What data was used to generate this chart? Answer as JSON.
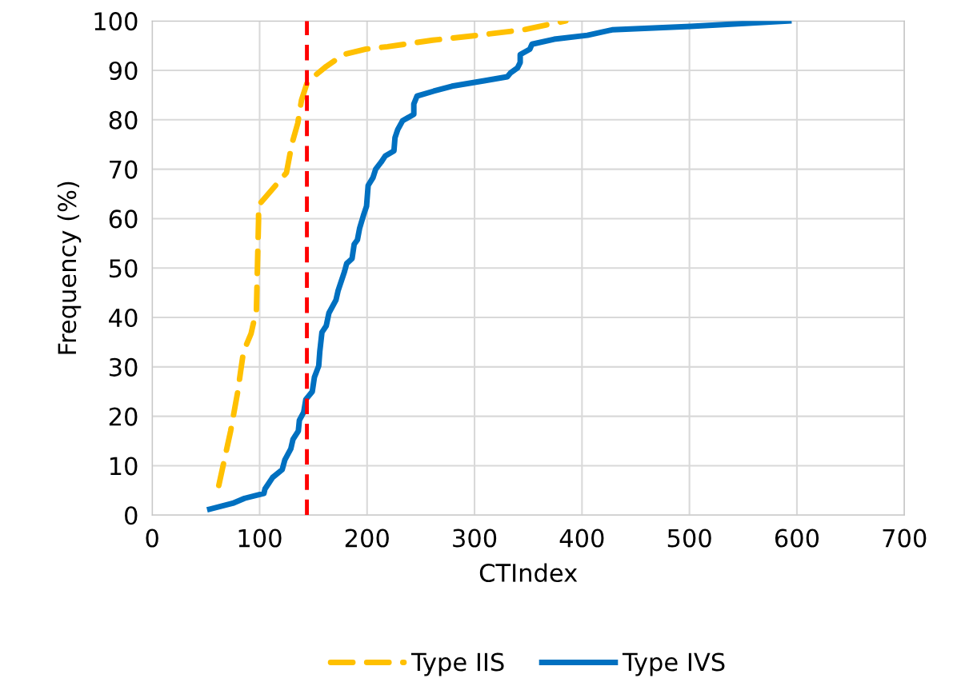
{
  "chart_data": {
    "type": "line",
    "xlabel": "CTIndex",
    "ylabel": "Frequency (%)",
    "xlim": [
      0,
      700
    ],
    "xticks": [
      0,
      100,
      200,
      300,
      400,
      500,
      600,
      700
    ],
    "ylim": [
      0,
      100
    ],
    "yticks": [
      0,
      10,
      20,
      30,
      40,
      50,
      60,
      70,
      80,
      90,
      100
    ],
    "grid": true,
    "legend": "bottom",
    "marker": "none",
    "series": [
      {
        "name": "Type IIS",
        "color": "#ffc000",
        "line_style": "dashed",
        "x": [
          62,
          73,
          80,
          82,
          85,
          92,
          97,
          98,
          99,
          99,
          101,
          116,
          125,
          130,
          135.5,
          139,
          144.5,
          162,
          178,
          199,
          219,
          261,
          303,
          345,
          385
        ],
        "values": [
          6,
          17,
          25.4,
          28.6,
          33.1,
          36.7,
          41.5,
          50.6,
          59.6,
          62.8,
          63.2,
          67,
          69.3,
          75.1,
          79.3,
          84,
          87.7,
          90.8,
          93.2,
          94.3,
          94.8,
          96.1,
          97.1,
          98.2,
          100
        ]
      },
      {
        "name": "Type IVS",
        "color": "#0070c0",
        "line_style": "solid",
        "x": [
          53.6,
          75,
          86,
          104,
          105,
          112,
          121,
          123.5,
          129,
          131,
          136,
          137,
          141,
          143,
          149,
          151,
          155,
          156,
          158,
          162,
          164.5,
          171,
          173,
          179,
          181,
          186,
          188,
          191,
          193,
          197,
          199.5,
          201,
          205.5,
          208,
          213,
          217,
          225,
          226,
          228.5,
          233,
          243.5,
          243.5,
          246.5,
          262,
          279,
          309,
          330.5,
          333.5,
          340,
          342.5,
          342.5,
          351.5,
          353.5,
          374,
          405,
          428,
          501,
          535,
          592.5
        ],
        "values": [
          1.2,
          2.4,
          3.4,
          4.4,
          5.3,
          7.6,
          9.2,
          11.2,
          13.4,
          15.3,
          17,
          19.2,
          20.8,
          23.4,
          25,
          27.9,
          30.2,
          33.1,
          37,
          38.3,
          40.9,
          43.5,
          45.4,
          49.3,
          50.9,
          51.9,
          54.8,
          55.7,
          58,
          60.9,
          62.5,
          66.7,
          68.3,
          70,
          71.4,
          72.7,
          73.7,
          76.4,
          78,
          79.8,
          81.1,
          83.2,
          84.8,
          85.8,
          86.8,
          87.9,
          88.7,
          89.5,
          90.5,
          91.6,
          93.2,
          94.3,
          95.3,
          96.3,
          97.1,
          98.2,
          98.9,
          99.3,
          100
        ]
      }
    ],
    "ref_lines": [
      {
        "axis": "x",
        "value": 144,
        "color": "#ff0000",
        "line_style": "dashed"
      }
    ]
  }
}
